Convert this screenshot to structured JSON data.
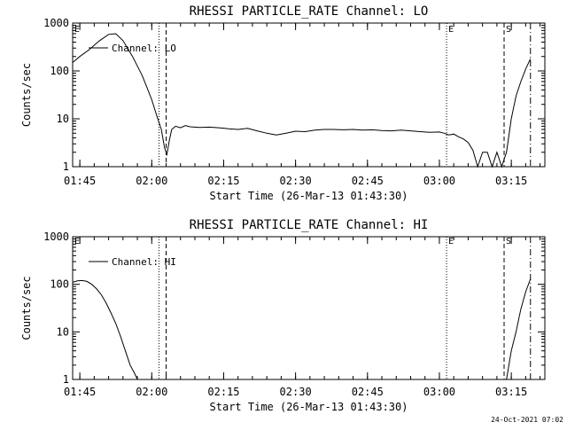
{
  "footer": {
    "timestamp": "24-Oct-2021 07:02"
  },
  "chart_data": [
    {
      "type": "line",
      "title": "RHESSI PARTICLE_RATE Channel: LO",
      "xlabel": "Start Time (26-Mar-13 01:43:30)",
      "ylabel": "Counts/sec",
      "y_scale": "log",
      "ylim": [
        1,
        1000
      ],
      "xlim": [
        "01:43:30",
        "03:22:00"
      ],
      "x_ticks": [
        "01:45",
        "02:00",
        "02:15",
        "02:30",
        "02:45",
        "03:00",
        "03:15"
      ],
      "y_ticks": [
        "1",
        "10",
        "100",
        "1000"
      ],
      "legend": {
        "label": "Channel: LO",
        "position": "top-left"
      },
      "markers": [
        {
          "time": "02:01:30",
          "style": "dotted",
          "label": ""
        },
        {
          "time": "02:03:00",
          "style": "dashed",
          "label": ""
        },
        {
          "time": "03:01:30",
          "style": "dotted",
          "label": "E"
        },
        {
          "time": "03:13:30",
          "style": "dashed",
          "label": "S"
        },
        {
          "time": "03:19:00",
          "style": "dash-dot",
          "label": ""
        }
      ],
      "corner_label": "E",
      "series": [
        {
          "color": "#000000",
          "points": [
            [
              "01:43:30",
              150
            ],
            [
              "01:45:00",
              200
            ],
            [
              "01:47:00",
              280
            ],
            [
              "01:49:00",
              420
            ],
            [
              "01:51:00",
              580
            ],
            [
              "01:52:30",
              600
            ],
            [
              "01:54:00",
              430
            ],
            [
              "01:56:00",
              200
            ],
            [
              "01:58:00",
              80
            ],
            [
              "01:59:00",
              45
            ],
            [
              "02:00:00",
              25
            ],
            [
              "02:01:00",
              12
            ],
            [
              "02:02:00",
              6
            ],
            [
              "02:02:40",
              2.5
            ],
            [
              "02:03:10",
              1.8
            ],
            [
              "02:03:40",
              3.5
            ],
            [
              "02:04:10",
              6
            ],
            [
              "02:05:00",
              7
            ],
            [
              "02:06:00",
              6.5
            ],
            [
              "02:07:00",
              7.2
            ],
            [
              "02:08:00",
              6.8
            ],
            [
              "02:10:00",
              6.6
            ],
            [
              "02:12:00",
              6.7
            ],
            [
              "02:14:00",
              6.5
            ],
            [
              "02:16:00",
              6.2
            ],
            [
              "02:18:00",
              6.0
            ],
            [
              "02:20:00",
              6.3
            ],
            [
              "02:22:00",
              5.6
            ],
            [
              "02:24:00",
              5.0
            ],
            [
              "02:26:00",
              4.6
            ],
            [
              "02:28:00",
              5.0
            ],
            [
              "02:30:00",
              5.5
            ],
            [
              "02:32:00",
              5.4
            ],
            [
              "02:34:00",
              5.8
            ],
            [
              "02:36:00",
              6.0
            ],
            [
              "02:38:00",
              6.0
            ],
            [
              "02:40:00",
              5.9
            ],
            [
              "02:42:00",
              6.0
            ],
            [
              "02:44:00",
              5.8
            ],
            [
              "02:46:00",
              5.9
            ],
            [
              "02:48:00",
              5.7
            ],
            [
              "02:50:00",
              5.6
            ],
            [
              "02:52:00",
              5.8
            ],
            [
              "02:54:00",
              5.6
            ],
            [
              "02:56:00",
              5.4
            ],
            [
              "02:58:00",
              5.2
            ],
            [
              "03:00:00",
              5.3
            ],
            [
              "03:01:00",
              5.0
            ],
            [
              "03:02:00",
              4.6
            ],
            [
              "03:03:00",
              4.8
            ],
            [
              "03:04:00",
              4.2
            ],
            [
              "03:05:00",
              3.8
            ],
            [
              "03:06:00",
              3.2
            ],
            [
              "03:07:00",
              2.2
            ],
            [
              "03:08:00",
              1.0
            ],
            [
              "03:09:00",
              2.0
            ],
            [
              "03:10:00",
              2.0
            ],
            [
              "03:11:00",
              1.0
            ],
            [
              "03:12:00",
              2.0
            ],
            [
              "03:13:00",
              1.0
            ],
            [
              "03:14:00",
              2.0
            ],
            [
              "03:15:00",
              10
            ],
            [
              "03:16:00",
              30
            ],
            [
              "03:17:00",
              60
            ],
            [
              "03:18:00",
              110
            ],
            [
              "03:19:00",
              180
            ]
          ]
        }
      ]
    },
    {
      "type": "line",
      "title": "RHESSI PARTICLE_RATE Channel: HI",
      "xlabel": "Start Time (26-Mar-13 01:43:30)",
      "ylabel": "Counts/sec",
      "y_scale": "log",
      "ylim": [
        1,
        1000
      ],
      "xlim": [
        "01:43:30",
        "03:22:00"
      ],
      "x_ticks": [
        "01:45",
        "02:00",
        "02:15",
        "02:30",
        "02:45",
        "03:00",
        "03:15"
      ],
      "y_ticks": [
        "1",
        "10",
        "100",
        "1000"
      ],
      "legend": {
        "label": "Channel: HI",
        "position": "top-left"
      },
      "markers": [
        {
          "time": "02:01:30",
          "style": "dotted",
          "label": ""
        },
        {
          "time": "02:03:00",
          "style": "dashed",
          "label": ""
        },
        {
          "time": "03:01:30",
          "style": "dotted",
          "label": "E"
        },
        {
          "time": "03:13:30",
          "style": "dashed",
          "label": "S"
        },
        {
          "time": "03:19:00",
          "style": "dash-dot",
          "label": ""
        }
      ],
      "corner_label": "E",
      "series": [
        {
          "color": "#000000",
          "points": [
            [
              "01:43:30",
              110
            ],
            [
              "01:44:30",
              118
            ],
            [
              "01:45:30",
              120
            ],
            [
              "01:46:30",
              115
            ],
            [
              "01:47:30",
              100
            ],
            [
              "01:48:30",
              80
            ],
            [
              "01:49:30",
              60
            ],
            [
              "01:50:30",
              40
            ],
            [
              "01:51:30",
              25
            ],
            [
              "01:52:30",
              15
            ],
            [
              "01:53:30",
              8
            ],
            [
              "01:54:30",
              4
            ],
            [
              "01:55:30",
              2
            ],
            [
              "01:56:30",
              1.3
            ],
            [
              "01:57:00",
              1.0
            ]
          ]
        },
        {
          "color": "#000000",
          "points": [
            [
              "03:14:00",
              1.0
            ],
            [
              "03:14:30",
              2
            ],
            [
              "03:15:00",
              4
            ],
            [
              "03:16:00",
              10
            ],
            [
              "03:17:00",
              30
            ],
            [
              "03:18:00",
              70
            ],
            [
              "03:19:00",
              130
            ]
          ]
        }
      ]
    }
  ]
}
